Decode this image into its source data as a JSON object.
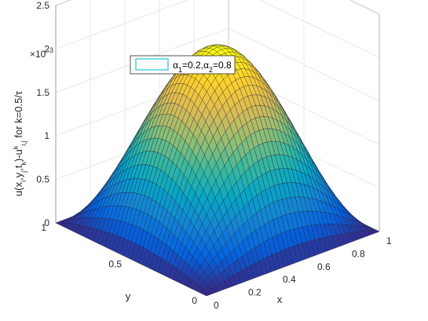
{
  "chart_data": {
    "type": "surface",
    "zlabel": "u(x_i,y_j,t_k)-u^k_{i,j} for k=0.5/τ",
    "xlabel": "x",
    "ylabel": "y",
    "xlim": [
      0,
      1
    ],
    "ylim": [
      0,
      1
    ],
    "zlim": [
      0,
      0.0025
    ],
    "x_ticks": [
      "0",
      "0.2",
      "0.4",
      "0.6",
      "0.8",
      "1"
    ],
    "y_ticks": [
      "0",
      "0.5",
      "1"
    ],
    "z_ticks": [
      "0",
      "0.5",
      "1",
      "1.5",
      "2",
      "2.5"
    ],
    "z_exponent": "×10",
    "z_exponent_power": "-3",
    "surface": {
      "function": "A*sin(pi*x)*sin(pi*y)",
      "peak_value": 0.00207,
      "peak_at": [
        0.5,
        0.5
      ],
      "boundary_value": 0,
      "grid_lines": 41
    },
    "colormap": [
      "#352a87",
      "#0363e1",
      "#1485d4",
      "#06a7c6",
      "#38b99e",
      "#92bf73",
      "#d9ba56",
      "#fcce2e",
      "#f9fb0e"
    ],
    "edge_color": "dark",
    "legend": {
      "series": "α_1=0.2, α_2=0.8",
      "line_color": "#21c4d9",
      "location": "north"
    },
    "grid": true,
    "view": "3d-default"
  }
}
